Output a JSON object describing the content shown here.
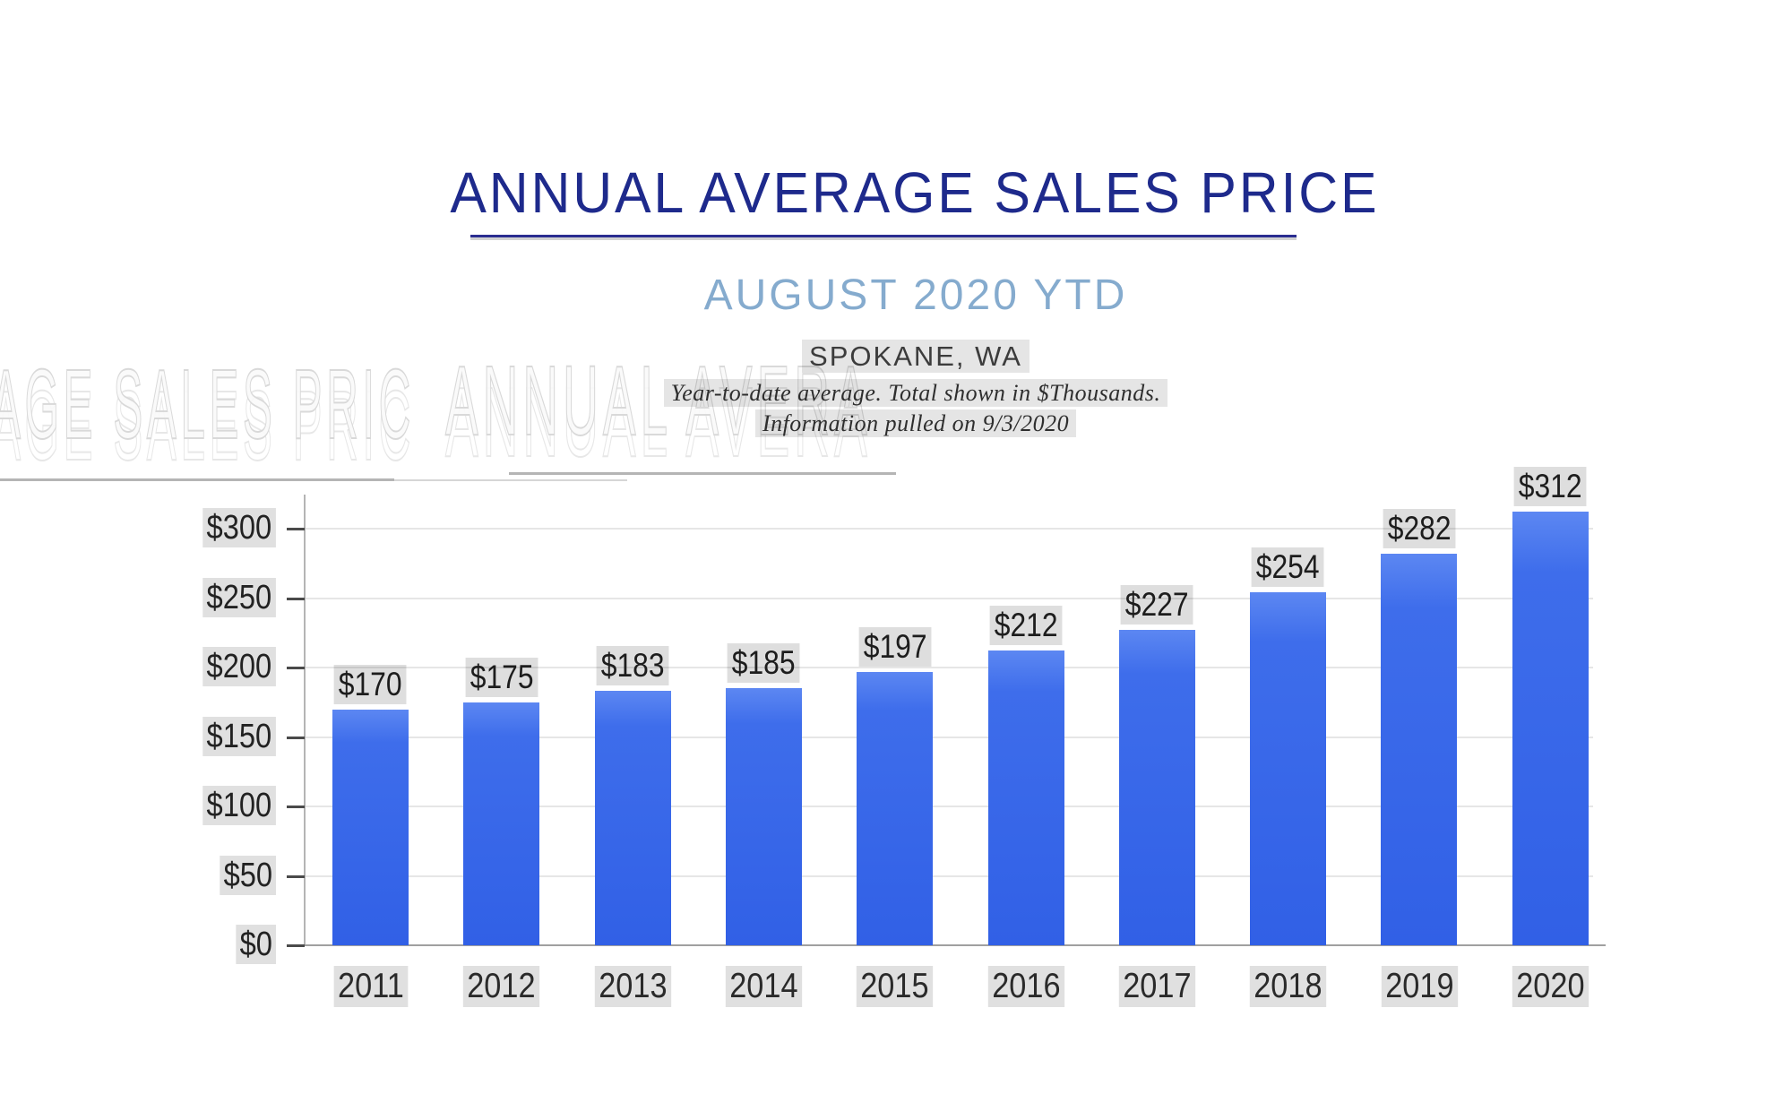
{
  "header": {
    "title": "ANNUAL AVERAGE SALES PRICE",
    "subtitle": "AUGUST 2020 YTD",
    "location": "SPOKANE, WA",
    "note_line1": "Year-to-date average.  Total shown in $Thousands.",
    "note_line2": "Information pulled on 9/3/2020",
    "title_color": "#1e2a8c",
    "subtitle_color": "#85abce"
  },
  "watermark": {
    "ghost_left": "AGE SALES PRIC",
    "ghost_right": "ANNUAL AVERA"
  },
  "chart_data": {
    "type": "bar",
    "title": "ANNUAL AVERAGE SALES PRICE",
    "subtitle": "AUGUST 2020 YTD",
    "region": "SPOKANE, WA",
    "unit": "$Thousands",
    "categories": [
      "2011",
      "2012",
      "2013",
      "2014",
      "2015",
      "2016",
      "2017",
      "2018",
      "2019",
      "2020"
    ],
    "values": [
      170,
      175,
      183,
      185,
      197,
      212,
      227,
      254,
      282,
      312
    ],
    "value_labels": [
      "$170",
      "$175",
      "$183",
      "$185",
      "$197",
      "$212",
      "$227",
      "$254",
      "$282",
      "$312"
    ],
    "xlabel": "",
    "ylabel": "",
    "ylim": [
      0,
      320
    ],
    "yticks": [
      0,
      50,
      100,
      150,
      200,
      250,
      300
    ],
    "ytick_labels": [
      "$0",
      "$50",
      "$100",
      "$150",
      "$200",
      "$250",
      "$300"
    ],
    "grid": true,
    "legend": "none",
    "bar_color_top": "#5c87f2",
    "bar_color_bottom": "#3160e6",
    "gridline_color": "#e6e6e6",
    "axis_color": "#a0a0a0"
  }
}
